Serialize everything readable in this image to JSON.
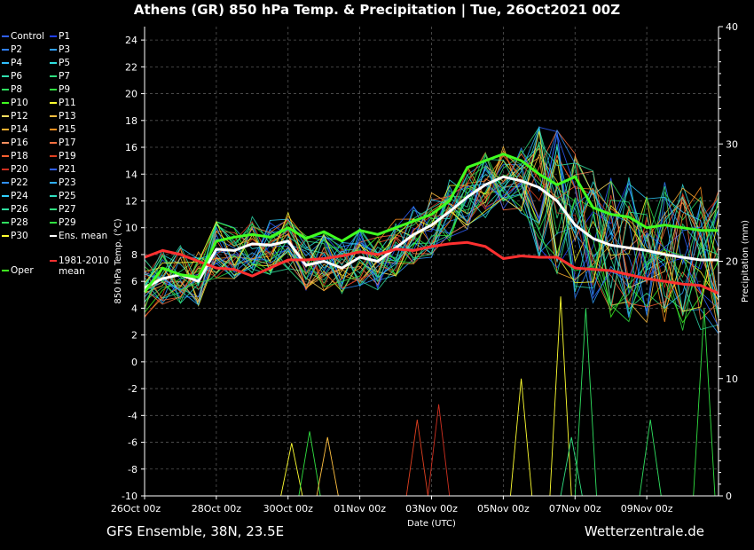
{
  "title": "Athens  (GR)  850 hPa Temp. & Precipitation | Tue, 26Oct2021 00Z",
  "footer": {
    "left": "GFS Ensemble, 38N, 23.5E",
    "right": "Wetterzentrale.de"
  },
  "chart_data": {
    "type": "line",
    "ylabel": "850 hPa Temp. (°C)",
    "y2label": "Precipitation (mm)",
    "xlabel": "Date (UTC)",
    "ylim": [
      -10,
      25
    ],
    "y2lim": [
      0,
      40
    ],
    "yticks": [
      -10,
      -8,
      -6,
      -4,
      -2,
      0,
      2,
      4,
      6,
      8,
      10,
      12,
      14,
      16,
      18,
      20,
      22,
      24
    ],
    "y2ticks": [
      0,
      10,
      20,
      30,
      40
    ],
    "xlim": [
      0,
      16
    ],
    "xticks": [
      {
        "x": 0,
        "label": "26Oct 00z"
      },
      {
        "x": 2,
        "label": "28Oct 00z"
      },
      {
        "x": 4,
        "label": "30Oct 00z"
      },
      {
        "x": 6,
        "label": "01Nov 00z"
      },
      {
        "x": 8,
        "label": "03Nov 00z"
      },
      {
        "x": 10,
        "label": "05Nov 00z"
      },
      {
        "x": 12,
        "label": "07Nov 00z"
      },
      {
        "x": 14,
        "label": "09Nov 00z"
      }
    ],
    "grid": true,
    "legend": [
      {
        "label": "Control",
        "color": "#3060ff"
      },
      {
        "label": "P1",
        "color": "#2040ff"
      },
      {
        "label": "P2",
        "color": "#3080ff"
      },
      {
        "label": "P3",
        "color": "#30a0ff"
      },
      {
        "label": "P4",
        "color": "#30c0ff"
      },
      {
        "label": "P5",
        "color": "#30e0e0"
      },
      {
        "label": "P6",
        "color": "#30e0b0"
      },
      {
        "label": "P7",
        "color": "#30e080"
      },
      {
        "label": "P8",
        "color": "#30e060"
      },
      {
        "label": "P9",
        "color": "#30e040"
      },
      {
        "label": "P10",
        "color": "#40ff20"
      },
      {
        "label": "P11",
        "color": "#ffff30"
      },
      {
        "label": "P12",
        "color": "#ffe060"
      },
      {
        "label": "P13",
        "color": "#ffc040"
      },
      {
        "label": "P14",
        "color": "#ffb030"
      },
      {
        "label": "P15",
        "color": "#ff9020"
      },
      {
        "label": "P16",
        "color": "#ff9060"
      },
      {
        "label": "P17",
        "color": "#ff7040"
      },
      {
        "label": "P18",
        "color": "#ff6030"
      },
      {
        "label": "P19",
        "color": "#e04020"
      },
      {
        "label": "P20",
        "color": "#d03020"
      },
      {
        "label": "P21",
        "color": "#3060ff"
      },
      {
        "label": "P22",
        "color": "#3090ff"
      },
      {
        "label": "P23",
        "color": "#30b0ff"
      },
      {
        "label": "P24",
        "color": "#30d0ff"
      },
      {
        "label": "P25",
        "color": "#30e0c0"
      },
      {
        "label": "P26",
        "color": "#30e0a0"
      },
      {
        "label": "P27",
        "color": "#30e080"
      },
      {
        "label": "P28",
        "color": "#30e060"
      },
      {
        "label": "P29",
        "color": "#30e040"
      },
      {
        "label": "P30",
        "color": "#ffff30"
      },
      {
        "label": "Ens. mean",
        "color": "#ffffff"
      },
      {
        "label": "1981-2010 mean",
        "color": "#ff3030"
      },
      {
        "label": "Oper",
        "color": "#40ff20"
      }
    ],
    "series": [
      {
        "name": "Ens. mean",
        "color": "#ffffff",
        "width": 3,
        "x": [
          0,
          0.5,
          1,
          1.5,
          2,
          2.5,
          3,
          3.5,
          4,
          4.5,
          5,
          5.5,
          6,
          6.5,
          7,
          7.5,
          8,
          8.5,
          9,
          9.5,
          10,
          10.5,
          11,
          11.5,
          12,
          12.5,
          13,
          13.5,
          14,
          14.5,
          15,
          15.5,
          16
        ],
        "y": [
          5.5,
          6.2,
          6.5,
          6.0,
          8.4,
          8.3,
          8.8,
          8.7,
          9.0,
          7.2,
          7.5,
          7.0,
          7.8,
          7.5,
          8.5,
          9.5,
          10.2,
          11.2,
          12.3,
          13.2,
          13.8,
          13.5,
          13.0,
          12.0,
          10.2,
          9.2,
          8.7,
          8.5,
          8.3,
          8.0,
          7.8,
          7.6,
          7.6
        ]
      },
      {
        "name": "1981-2010 mean",
        "color": "#ff3030",
        "width": 3,
        "x": [
          0,
          0.5,
          1,
          1.5,
          2,
          2.5,
          3,
          3.5,
          4,
          4.5,
          5,
          5.5,
          6,
          6.5,
          7,
          7.5,
          8,
          8.5,
          9,
          9.5,
          10,
          10.5,
          11,
          11.5,
          12,
          12.5,
          13,
          13.5,
          14,
          14.5,
          15,
          15.5,
          16
        ],
        "y": [
          7.8,
          8.3,
          8.0,
          7.5,
          7.0,
          6.9,
          6.4,
          7.0,
          7.6,
          7.6,
          7.7,
          7.9,
          8.2,
          8.0,
          8.4,
          8.3,
          8.6,
          8.8,
          8.9,
          8.6,
          7.7,
          7.9,
          7.8,
          7.8,
          7.0,
          6.9,
          6.8,
          6.5,
          6.2,
          6.0,
          5.8,
          5.7,
          5.1
        ]
      },
      {
        "name": "Oper",
        "color": "#40ff20",
        "width": 3,
        "x": [
          0,
          0.5,
          1,
          1.5,
          2,
          2.5,
          3,
          3.5,
          4,
          4.5,
          5,
          5.5,
          6,
          6.5,
          7,
          7.5,
          8,
          8.5,
          9,
          9.5,
          10,
          10.5,
          11,
          11.5,
          12,
          12.5,
          13,
          13.5,
          14,
          14.5,
          15,
          15.5,
          16
        ],
        "y": [
          5.2,
          7.0,
          6.5,
          6.3,
          9.0,
          9.3,
          9.5,
          9.3,
          10.0,
          9.2,
          9.7,
          9.0,
          9.8,
          9.5,
          10.0,
          10.5,
          11.0,
          12.0,
          14.5,
          15.0,
          15.5,
          15.0,
          14.0,
          13.2,
          13.8,
          11.5,
          11.0,
          10.8,
          10.0,
          10.2,
          10.0,
          9.8,
          9.8
        ]
      }
    ]
  }
}
